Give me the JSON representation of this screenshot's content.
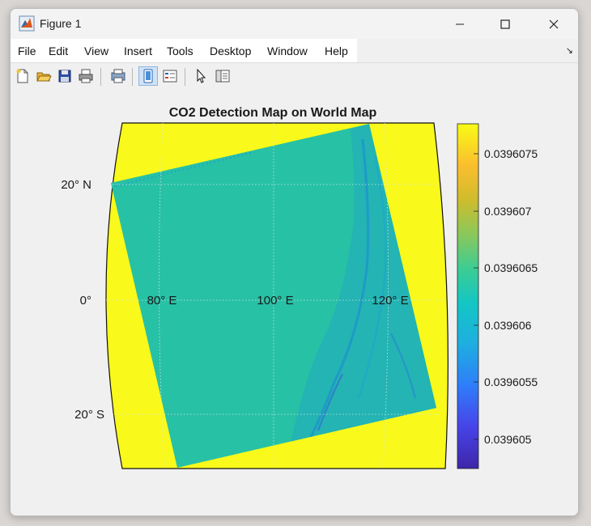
{
  "window": {
    "title": "Figure 1",
    "app_icon": "matlab-icon"
  },
  "menu": [
    "File",
    "Edit",
    "View",
    "Insert",
    "Tools",
    "Desktop",
    "Window",
    "Help"
  ],
  "menu_dock_glyph": "↘",
  "toolbar": {
    "buttons": [
      "new-figure-icon",
      "open-folder-icon",
      "save-icon",
      "print-icon",
      "print-preview-icon",
      "property-inspector-icon",
      "legend-icon",
      "pointer-icon",
      "plot-browser-icon"
    ]
  },
  "plot": {
    "title": "CO2 Detection Map on World Map",
    "lat_labels": [
      "20° N",
      "0°",
      "20° S"
    ],
    "lon_labels": [
      "80° E",
      "100° E",
      "120° E"
    ],
    "colorbar_ticks": [
      "0.0396075",
      "0.039607",
      "0.0396065",
      "0.039606",
      "0.0396055",
      "0.039605"
    ],
    "colors": {
      "map_background": "#f9f91b",
      "swath_fill": "#27c1a6",
      "coast_noise": "#1ea0c8",
      "colormap": [
        "#3e26a8",
        "#4743e8",
        "#2f7dfa",
        "#1eaee1",
        "#13c6c4",
        "#3dcc94",
        "#8bc85a",
        "#cfbc2c",
        "#fbbe2e",
        "#f9fb15"
      ]
    }
  }
}
